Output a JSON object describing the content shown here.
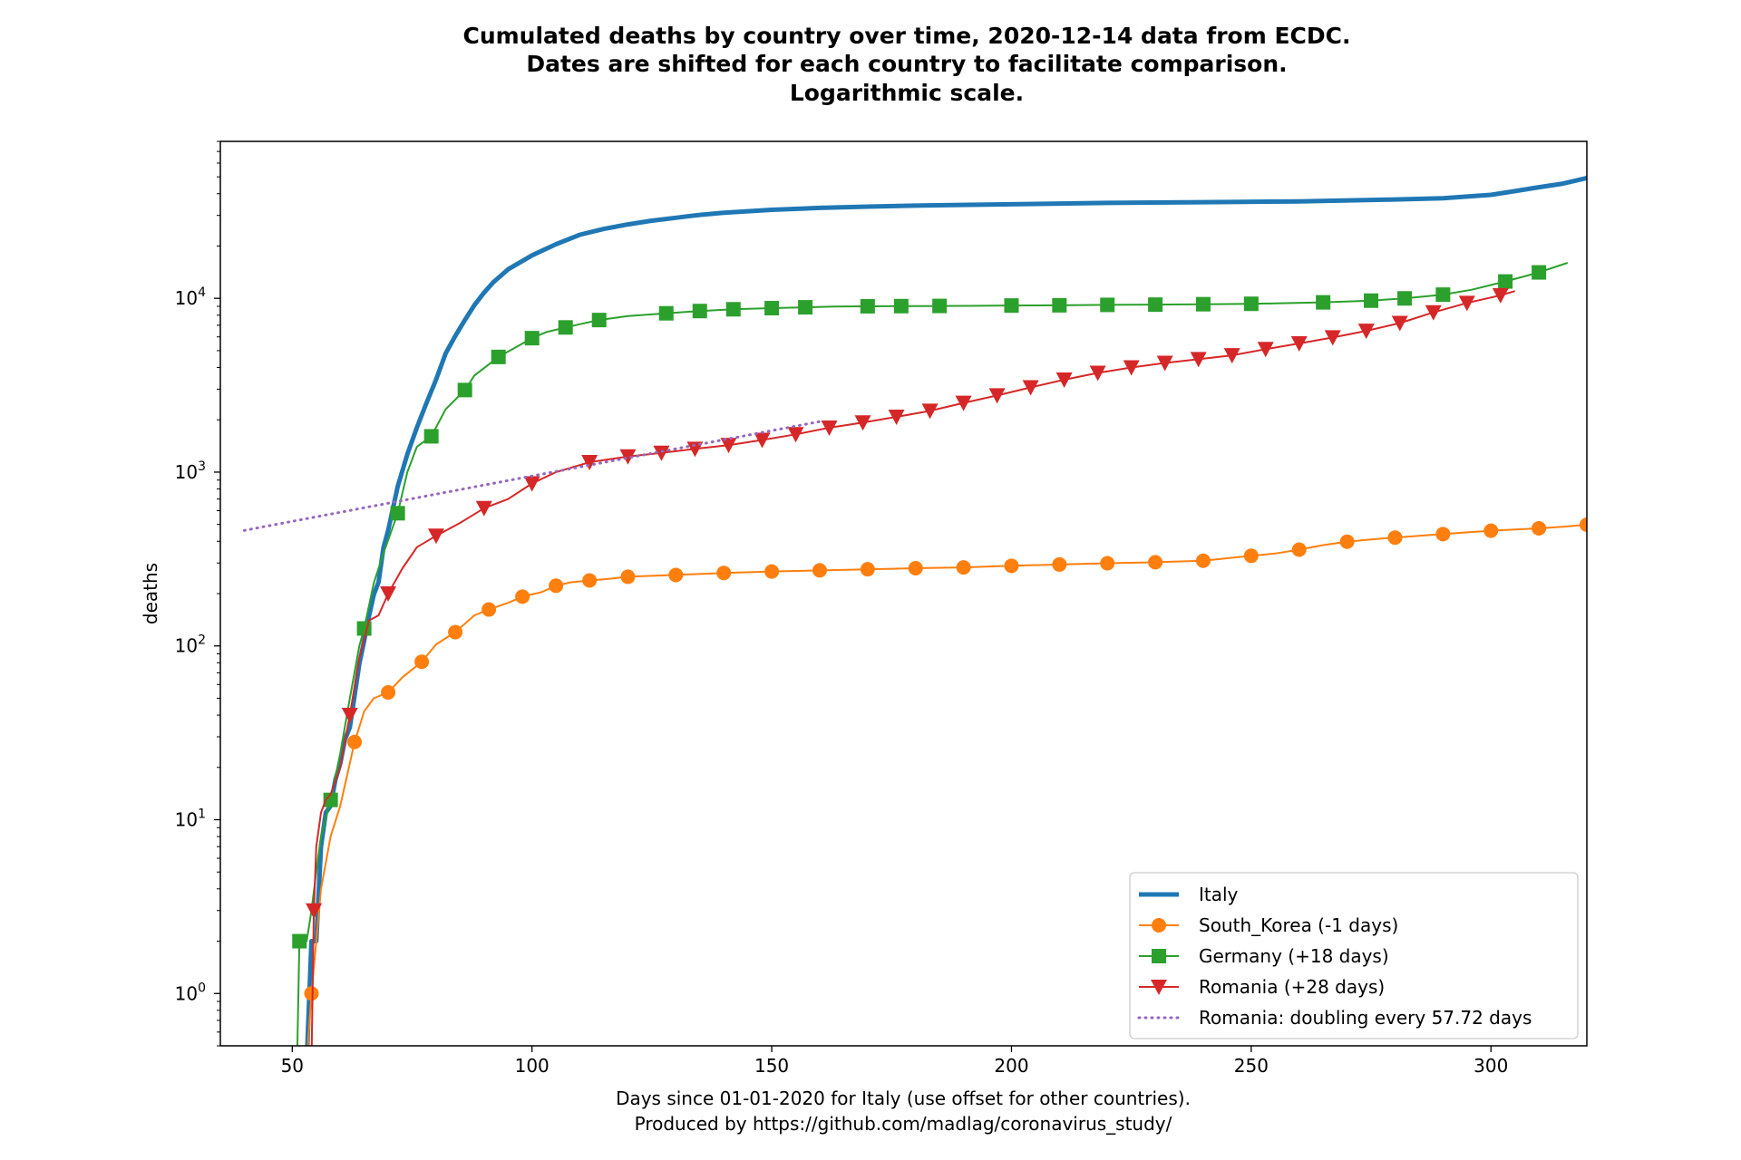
{
  "chart_data": {
    "type": "line",
    "title": [
      "Cumulated deaths by country over time, 2020-12-14 data from ECDC.",
      "Dates are shifted for each country to facilitate comparison.",
      "Logarithmic scale."
    ],
    "xlabel": [
      "Days since 01-01-2020 for Italy (use offset for other countries).",
      "Produced by https://github.com/madlag/coronavirus_study/"
    ],
    "ylabel": "deaths",
    "x_scale": "linear",
    "y_scale": "log",
    "xlim": [
      35,
      320
    ],
    "ylim": [
      0.5,
      80000
    ],
    "x_ticks": [
      {
        "value": 50,
        "label": "50"
      },
      {
        "value": 100,
        "label": "100"
      },
      {
        "value": 150,
        "label": "150"
      },
      {
        "value": 200,
        "label": "200"
      },
      {
        "value": 250,
        "label": "250"
      },
      {
        "value": 300,
        "label": "300"
      }
    ],
    "y_ticks": [
      {
        "value": 1,
        "base": "10",
        "exp": "0"
      },
      {
        "value": 10,
        "base": "10",
        "exp": "1"
      },
      {
        "value": 100,
        "base": "10",
        "exp": "2"
      },
      {
        "value": 1000,
        "base": "10",
        "exp": "3"
      },
      {
        "value": 10000,
        "base": "10",
        "exp": "4"
      }
    ],
    "grid": false,
    "legend_position": "bottom-right",
    "series": [
      {
        "name": "Italy",
        "color": "#1f77b4",
        "line_width": 5,
        "marker": "none",
        "x": [
          53,
          54,
          55,
          56,
          57,
          58,
          59,
          60,
          61,
          62,
          63,
          64,
          65,
          66,
          67,
          68,
          69,
          70,
          72,
          74,
          76,
          78,
          80,
          82,
          84,
          86,
          88,
          90,
          92,
          95,
          100,
          105,
          110,
          115,
          120,
          125,
          130,
          135,
          140,
          150,
          160,
          170,
          180,
          200,
          220,
          240,
          260,
          280,
          290,
          300,
          305,
          310,
          315,
          320
        ],
        "y": [
          0.4,
          2,
          2,
          7,
          11,
          12,
          17,
          21,
          29,
          34,
          52,
          79,
          107,
          148,
          197,
          233,
          366,
          463,
          827,
          1266,
          1809,
          2503,
          3405,
          4825,
          6077,
          7503,
          9134,
          10779,
          12428,
          14681,
          17669,
          20465,
          23227,
          25085,
          26644,
          27967,
          29079,
          30201,
          31106,
          32330,
          33142,
          33689,
          34134,
          34767,
          35418,
          35738,
          36140,
          37059,
          37700,
          39412,
          41394,
          43589,
          45733,
          49261
        ]
      },
      {
        "name": "South_Korea (-1 days)",
        "color": "#ff7f0e",
        "line_width": 2,
        "marker": "circle",
        "marker_every": 7,
        "x": [
          53,
          54,
          55,
          56,
          58,
          60,
          63,
          65,
          67,
          70,
          73,
          77,
          80,
          84,
          88,
          91,
          95,
          98,
          102,
          105,
          108,
          112,
          116,
          120,
          130,
          140,
          150,
          160,
          170,
          180,
          190,
          200,
          210,
          220,
          230,
          240,
          250,
          255,
          260,
          265,
          270,
          275,
          280,
          290,
          300,
          310,
          315,
          320
        ],
        "y": [
          0.4,
          1,
          2,
          4,
          8,
          12,
          28,
          42,
          50,
          54,
          66,
          81,
          102,
          120,
          150,
          162,
          177,
          192,
          204,
          222,
          232,
          238,
          243,
          250,
          256,
          263,
          268,
          272,
          276,
          280,
          283,
          289,
          294,
          299,
          303,
          309,
          330,
          340,
          358,
          380,
          398,
          410,
          420,
          440,
          460,
          475,
          485,
          498
        ]
      },
      {
        "name": "Germany (+18 days)",
        "color": "#2ca02c",
        "line_width": 2,
        "marker": "square",
        "marker_every": 7,
        "x": [
          51,
          51.5,
          52,
          53,
          54,
          55,
          56,
          58,
          60,
          62,
          64,
          65,
          67,
          69,
          72,
          74,
          76,
          79,
          82,
          86,
          88,
          93,
          97,
          100,
          103,
          107,
          110,
          114,
          120,
          128,
          135,
          142,
          150,
          157,
          163,
          170,
          177,
          185,
          191,
          200,
          210,
          220,
          230,
          240,
          250,
          255,
          265,
          275,
          282,
          290,
          296,
          303,
          310,
          316
        ],
        "y": [
          0.4,
          2,
          2,
          2,
          3,
          5,
          8,
          13,
          24,
          50,
          100,
          126,
          230,
          340,
          580,
          1000,
          1400,
          1607,
          2300,
          2967,
          3600,
          4600,
          5300,
          5900,
          6400,
          6800,
          7100,
          7500,
          7900,
          8200,
          8450,
          8650,
          8780,
          8880,
          8960,
          9000,
          9020,
          9040,
          9050,
          9090,
          9120,
          9170,
          9200,
          9250,
          9300,
          9350,
          9480,
          9700,
          9990,
          10500,
          11200,
          12500,
          14100,
          16000
        ]
      },
      {
        "name": "Romania (+28 days)",
        "color": "#d62728",
        "line_width": 2,
        "marker": "triangle-down",
        "marker_every": 7,
        "x": [
          54,
          54.5,
          55,
          56,
          57,
          58,
          60,
          62,
          64,
          66,
          68,
          70,
          73,
          76,
          80,
          85,
          90,
          95,
          100,
          105,
          112,
          120,
          127,
          134,
          141,
          148,
          155,
          162,
          169,
          176,
          183,
          190,
          197,
          204,
          211,
          218,
          225,
          232,
          239,
          246,
          253,
          260,
          267,
          274,
          281,
          288,
          295,
          302,
          305
        ],
        "y": [
          0.4,
          3,
          7,
          11,
          13,
          14,
          20,
          40,
          85,
          140,
          150,
          200,
          280,
          370,
          430,
          510,
          620,
          700,
          860,
          1000,
          1140,
          1230,
          1290,
          1360,
          1430,
          1530,
          1650,
          1800,
          1930,
          2080,
          2250,
          2500,
          2760,
          3070,
          3400,
          3720,
          4000,
          4250,
          4460,
          4700,
          5100,
          5500,
          5950,
          6500,
          7200,
          8300,
          9400,
          10400,
          11000
        ]
      },
      {
        "name": "Romania: doubling every 57.72 days",
        "color": "#9467bd",
        "line_width": 3,
        "marker": "none",
        "dashed": true,
        "x": [
          40,
          160
        ],
        "y": [
          462,
          1954
        ]
      }
    ]
  }
}
